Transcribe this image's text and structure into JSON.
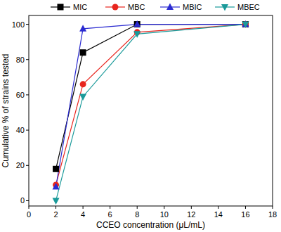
{
  "chart_data": {
    "type": "line",
    "x_label": "CCEO concentration (μL/mL)",
    "y_label": "Cumulative % of strains tested",
    "x": [
      2,
      4,
      8,
      16
    ],
    "series": [
      {
        "name": "MIC",
        "color": "#000000",
        "marker": "square",
        "values": [
          18,
          84,
          100,
          100
        ]
      },
      {
        "name": "MBC",
        "color": "#e8251e",
        "marker": "circle",
        "values": [
          9,
          66,
          95.5,
          100
        ]
      },
      {
        "name": "MBIC",
        "color": "#2b2bd1",
        "marker": "triangle",
        "values": [
          8,
          97.5,
          100,
          100
        ]
      },
      {
        "name": "MBEC",
        "color": "#1a9a9a",
        "marker": "triangle-down",
        "values": [
          0,
          59,
          94.5,
          100
        ]
      }
    ],
    "xlim": [
      0,
      18
    ],
    "xticks": [
      0,
      2,
      4,
      6,
      8,
      10,
      12,
      14,
      16,
      18
    ],
    "ylim": [
      -3,
      105
    ],
    "yticks": [
      0,
      20,
      40,
      60,
      80,
      100
    ],
    "grid": false,
    "legend": "top"
  }
}
